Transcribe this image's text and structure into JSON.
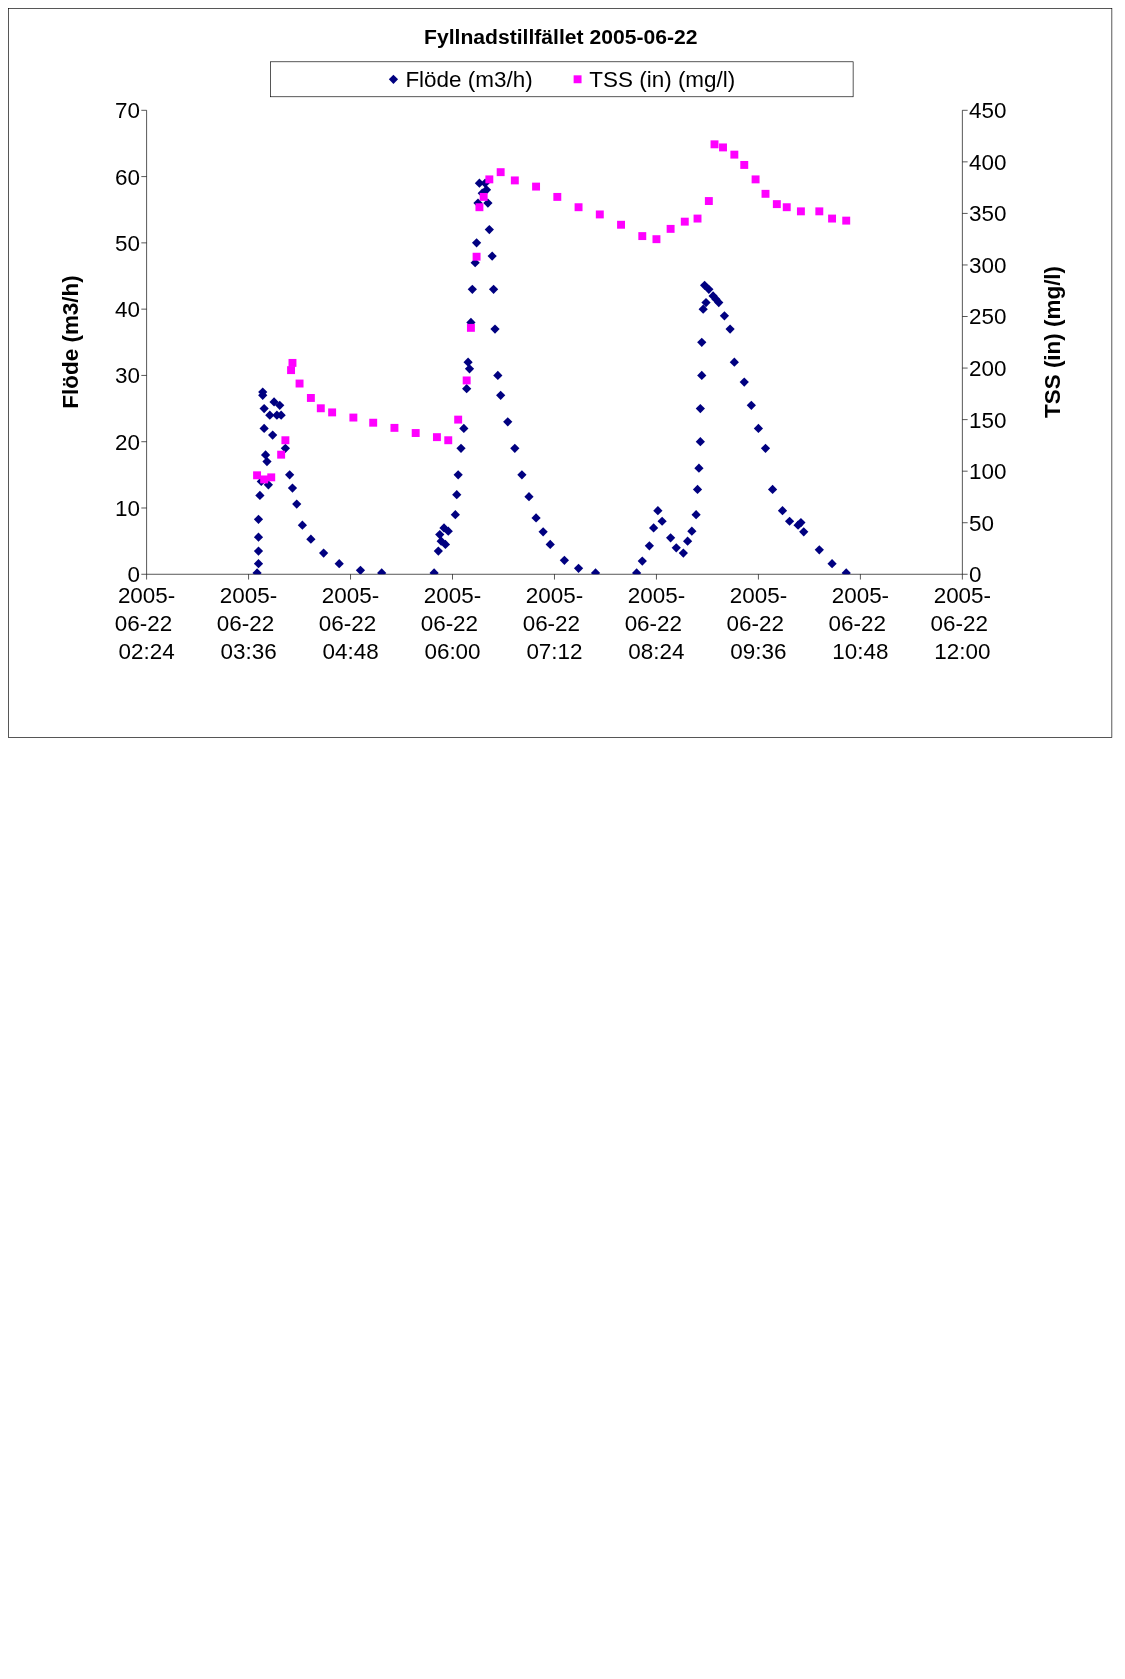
{
  "chart_data": {
    "type": "scatter",
    "title": "Fyllnadstillfället 2005-06-22",
    "ylabel": "Flöde (m3/h)",
    "y2label": "TSS (in) (mg/l)",
    "xlim": [
      "2005-06-22T02:24",
      "2005-06-22T12:00"
    ],
    "xticks": [
      {
        "value": "2005-06-22T02:24",
        "label": "2005-06-22 02:24"
      },
      {
        "value": "2005-06-22T03:36",
        "label": "2005-06-22 03:36"
      },
      {
        "value": "2005-06-22T04:48",
        "label": "2005-06-22 04:48"
      },
      {
        "value": "2005-06-22T06:00",
        "label": "2005-06-22 06:00"
      },
      {
        "value": "2005-06-22T07:12",
        "label": "2005-06-22 07:12"
      },
      {
        "value": "2005-06-22T08:24",
        "label": "2005-06-22 08:24"
      },
      {
        "value": "2005-06-22T09:36",
        "label": "2005-06-22 09:36"
      },
      {
        "value": "2005-06-22T10:48",
        "label": "2005-06-22 10:48"
      },
      {
        "value": "2005-06-22T12:00",
        "label": "2005-06-22 12:00"
      }
    ],
    "ylim": [
      0,
      70
    ],
    "yticks": [
      0,
      10,
      20,
      30,
      40,
      50,
      60,
      70
    ],
    "y2lim": [
      0,
      450
    ],
    "y2ticks": [
      0,
      50,
      100,
      150,
      200,
      250,
      300,
      350,
      400,
      450
    ],
    "legend": "top",
    "grid": false,
    "series": [
      {
        "name": "Flöde (m3/h)",
        "color": "#000080",
        "marker": "diamond",
        "x": [
          "2005-06-22T03:42",
          "2005-06-22T03:43",
          "2005-06-22T03:43",
          "2005-06-22T03:43",
          "2005-06-22T03:43",
          "2005-06-22T03:44",
          "2005-06-22T03:45",
          "2005-06-22T03:46",
          "2005-06-22T03:46",
          "2005-06-22T03:47",
          "2005-06-22T03:47",
          "2005-06-22T03:48",
          "2005-06-22T03:49",
          "2005-06-22T03:50",
          "2005-06-22T03:51",
          "2005-06-22T03:53",
          "2005-06-22T03:54",
          "2005-06-22T03:56",
          "2005-06-22T03:58",
          "2005-06-22T03:59",
          "2005-06-22T04:02",
          "2005-06-22T04:05",
          "2005-06-22T04:07",
          "2005-06-22T04:10",
          "2005-06-22T04:14",
          "2005-06-22T04:20",
          "2005-06-22T04:29",
          "2005-06-22T04:40",
          "2005-06-22T04:55",
          "2005-06-22T05:10",
          "2005-06-22T05:47",
          "2005-06-22T05:50",
          "2005-06-22T05:51",
          "2005-06-22T05:52",
          "2005-06-22T05:54",
          "2005-06-22T05:55",
          "2005-06-22T05:57",
          "2005-06-22T06:02",
          "2005-06-22T06:03",
          "2005-06-22T06:04",
          "2005-06-22T06:06",
          "2005-06-22T06:08",
          "2005-06-22T06:10",
          "2005-06-22T06:11",
          "2005-06-22T06:12",
          "2005-06-22T06:13",
          "2005-06-22T06:14",
          "2005-06-22T06:16",
          "2005-06-22T06:17",
          "2005-06-22T06:18",
          "2005-06-22T06:19",
          "2005-06-22T06:21",
          "2005-06-22T06:23",
          "2005-06-22T06:24",
          "2005-06-22T06:25",
          "2005-06-22T06:26",
          "2005-06-22T06:28",
          "2005-06-22T06:29",
          "2005-06-22T06:30",
          "2005-06-22T06:32",
          "2005-06-22T06:34",
          "2005-06-22T06:39",
          "2005-06-22T06:44",
          "2005-06-22T06:49",
          "2005-06-22T06:54",
          "2005-06-22T06:59",
          "2005-06-22T07:04",
          "2005-06-22T07:09",
          "2005-06-22T07:19",
          "2005-06-22T07:29",
          "2005-06-22T07:41",
          "2005-06-22T08:10",
          "2005-06-22T08:14",
          "2005-06-22T08:19",
          "2005-06-22T08:22",
          "2005-06-22T08:25",
          "2005-06-22T08:28",
          "2005-06-22T08:34",
          "2005-06-22T08:38",
          "2005-06-22T08:43",
          "2005-06-22T08:46",
          "2005-06-22T08:49",
          "2005-06-22T08:52",
          "2005-06-22T08:53",
          "2005-06-22T08:54",
          "2005-06-22T08:55",
          "2005-06-22T08:55",
          "2005-06-22T08:56",
          "2005-06-22T08:56",
          "2005-06-22T08:57",
          "2005-06-22T08:58",
          "2005-06-22T08:59",
          "2005-06-22T09:01",
          "2005-06-22T09:04",
          "2005-06-22T09:06",
          "2005-06-22T09:08",
          "2005-06-22T09:12",
          "2005-06-22T09:16",
          "2005-06-22T09:19",
          "2005-06-22T09:26",
          "2005-06-22T09:31",
          "2005-06-22T09:36",
          "2005-06-22T09:41",
          "2005-06-22T09:46",
          "2005-06-22T09:53",
          "2005-06-22T09:58",
          "2005-06-22T10:04",
          "2005-06-22T10:06",
          "2005-06-22T10:08",
          "2005-06-22T10:19",
          "2005-06-22T10:28",
          "2005-06-22T10:38"
        ],
        "values": [
          0.2,
          1.6,
          3.5,
          5.6,
          8.3,
          11.9,
          14,
          27.5,
          27,
          25,
          22,
          18,
          17,
          13.5,
          24,
          21,
          26,
          24,
          25.5,
          24,
          19,
          15,
          13,
          10.6,
          7.4,
          5.3,
          3.2,
          1.6,
          0.6,
          0.2,
          0.2,
          3.5,
          6,
          5,
          7,
          4.5,
          6.5,
          9,
          12,
          15,
          19,
          22,
          28,
          32,
          31,
          38,
          43,
          47,
          50,
          56,
          59,
          57.5,
          59,
          58,
          56,
          52,
          48,
          43,
          37,
          30,
          27,
          23,
          19,
          15,
          11.7,
          8.5,
          6.4,
          4.5,
          2.1,
          0.9,
          0.2,
          0.2,
          2,
          4.3,
          7,
          9.6,
          8,
          5.5,
          4,
          3.2,
          5,
          6.5,
          9,
          12.8,
          16,
          20,
          25,
          30,
          35,
          40,
          43.6,
          41,
          43,
          42,
          41.5,
          41,
          39,
          37,
          32,
          29,
          25.5,
          22,
          19,
          12.8,
          9.6,
          8,
          7.4,
          7.8,
          6.4,
          3.7,
          1.6,
          0.2
        ]
      },
      {
        "name": "TSS (in) (mg/l)",
        "color": "#ff00ff",
        "marker": "square",
        "axis": "y2",
        "x": [
          "2005-06-22T03:42",
          "2005-06-22T03:47",
          "2005-06-22T03:52",
          "2005-06-22T03:59",
          "2005-06-22T04:02",
          "2005-06-22T04:06",
          "2005-06-22T04:07",
          "2005-06-22T04:12",
          "2005-06-22T04:20",
          "2005-06-22T04:27",
          "2005-06-22T04:35",
          "2005-06-22T04:50",
          "2005-06-22T05:04",
          "2005-06-22T05:19",
          "2005-06-22T05:34",
          "2005-06-22T05:49",
          "2005-06-22T05:57",
          "2005-06-22T06:04",
          "2005-06-22T06:10",
          "2005-06-22T06:13",
          "2005-06-22T06:17",
          "2005-06-22T06:19",
          "2005-06-22T06:22",
          "2005-06-22T06:26",
          "2005-06-22T06:34",
          "2005-06-22T06:44",
          "2005-06-22T06:59",
          "2005-06-22T07:14",
          "2005-06-22T07:29",
          "2005-06-22T07:44",
          "2005-06-22T07:59",
          "2005-06-22T08:14",
          "2005-06-22T08:24",
          "2005-06-22T08:34",
          "2005-06-22T08:44",
          "2005-06-22T08:53",
          "2005-06-22T09:01",
          "2005-06-22T09:05",
          "2005-06-22T09:11",
          "2005-06-22T09:19",
          "2005-06-22T09:26",
          "2005-06-22T09:34",
          "2005-06-22T09:41",
          "2005-06-22T09:49",
          "2005-06-22T09:56",
          "2005-06-22T10:06",
          "2005-06-22T10:19",
          "2005-06-22T10:28",
          "2005-06-22T10:38"
        ],
        "values": [
          96,
          92,
          94,
          116,
          130,
          198,
          205,
          185,
          171,
          161,
          157,
          152,
          147,
          142,
          137,
          133,
          130,
          150,
          188,
          239,
          308,
          356,
          366,
          383,
          390,
          382,
          376,
          366,
          356,
          349,
          339,
          328,
          325,
          335,
          342,
          345,
          362,
          417,
          414,
          407,
          397,
          383,
          369,
          359,
          356,
          352,
          352,
          345,
          343
        ]
      }
    ]
  }
}
